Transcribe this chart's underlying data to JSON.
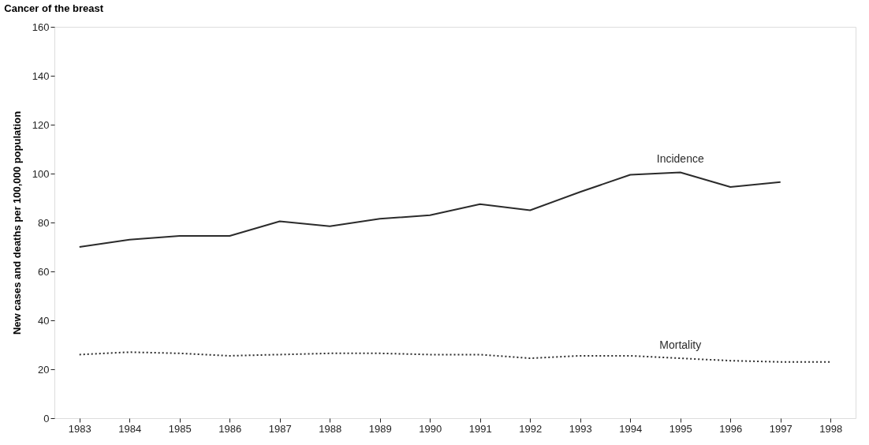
{
  "chart_data": {
    "type": "line",
    "title": "Cancer of the breast",
    "ylabel": "New cases and deaths per 100,000 population",
    "categories": [
      "1983",
      "1984",
      "1985",
      "1986",
      "1987",
      "1988",
      "1989",
      "1990",
      "1991",
      "1992",
      "1993",
      "1994",
      "1995",
      "1996",
      "1997",
      "1998"
    ],
    "series": [
      {
        "name": "Incidence",
        "color": "#2b2b2b",
        "line_style": "solid",
        "values": [
          70,
          73,
          74.5,
          74.5,
          80.5,
          78.5,
          81.5,
          83,
          87.5,
          85,
          92.5,
          99.5,
          100.5,
          94.5,
          96.5,
          null
        ]
      },
      {
        "name": "Mortality",
        "color": "#2b2b2b",
        "line_style": "dotted",
        "values": [
          26,
          27,
          26.5,
          25.5,
          26,
          26.5,
          26.5,
          26,
          26,
          24.5,
          25.5,
          25.5,
          24.5,
          23.5,
          23,
          23
        ]
      }
    ],
    "ylim": [
      0,
      160
    ],
    "yticks": [
      0,
      20,
      40,
      60,
      80,
      100,
      120,
      140,
      160
    ],
    "grid": false,
    "marker": "none"
  }
}
